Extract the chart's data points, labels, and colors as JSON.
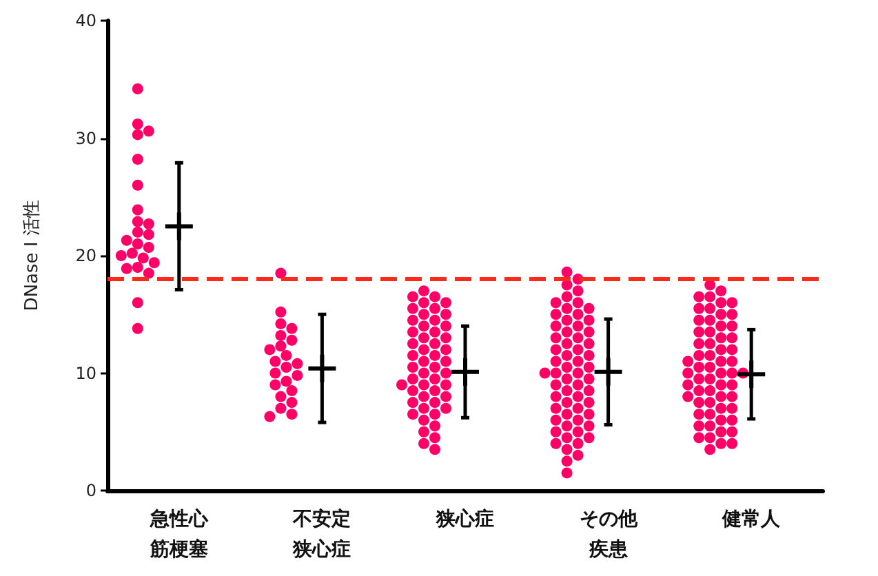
{
  "chart_data": {
    "type": "scatter",
    "ylabel": "DNase I 活性",
    "categories": [
      "急性心筋梗塞",
      "不安定狭心症",
      "狭心症",
      "その他疾患",
      "健常人"
    ],
    "ylim": [
      0,
      40
    ],
    "yticks": [
      0,
      10,
      20,
      30,
      40
    ],
    "grid": false,
    "marker": "circle",
    "ref_lines": [
      {
        "axis": "y",
        "value": 18,
        "color": "#ff2a1a",
        "line_style": "dashed"
      }
    ],
    "series": [
      {
        "color": "#ff0066",
        "x": [
          "急性心筋梗塞",
          "急性心筋梗塞",
          "急性心筋梗塞",
          "急性心筋梗塞",
          "急性心筋梗塞",
          "急性心筋梗塞",
          "急性心筋梗塞",
          "急性心筋梗塞",
          "急性心筋梗塞",
          "急性心筋梗塞",
          "急性心筋梗塞",
          "急性心筋梗塞",
          "急性心筋梗塞",
          "急性心筋梗塞",
          "急性心筋梗塞",
          "急性心筋梗塞",
          "急性心筋梗塞",
          "急性心筋梗塞",
          "急性心筋梗塞",
          "急性心筋梗塞",
          "急性心筋梗塞",
          "急性心筋梗塞",
          "急性心筋梗塞"
        ],
        "values": [
          34.2,
          31.2,
          30.6,
          30.3,
          28.2,
          26,
          23.9,
          22.9,
          22.7,
          22,
          21.8,
          21.3,
          21,
          20.7,
          20.2,
          20,
          19.8,
          19.4,
          19,
          18.9,
          18.5,
          16,
          13.8
        ]
      },
      {
        "color": "#ff0066",
        "x": [
          "不安定狭心症",
          "不安定狭心症",
          "不安定狭心症",
          "不安定狭心症",
          "不安定狭心症",
          "不安定狭心症",
          "不安定狭心症",
          "不安定狭心症",
          "不安定狭心症",
          "不安定狭心症",
          "不安定狭心症",
          "不安定狭心症",
          "不安定狭心症",
          "不安定狭心症",
          "不安定狭心症",
          "不安定狭心症",
          "不安定狭心症",
          "不安定狭心症",
          "不安定狭心症",
          "不安定狭心症",
          "不安定狭心症",
          "不安定狭心症"
        ],
        "values": [
          18.5,
          15.2,
          14.2,
          13.8,
          13.2,
          12.8,
          12.3,
          12,
          11.5,
          11,
          10.8,
          10.5,
          10,
          9.8,
          9.3,
          9,
          8.5,
          8,
          7.5,
          7,
          6.5,
          6.3
        ]
      },
      {
        "color": "#ff0066",
        "x": [
          "狭心症",
          "狭心症",
          "狭心症",
          "狭心症",
          "狭心症",
          "狭心症",
          "狭心症",
          "狭心症",
          "狭心症",
          "狭心症",
          "狭心症",
          "狭心症",
          "狭心症",
          "狭心症",
          "狭心症",
          "狭心症",
          "狭心症",
          "狭心症",
          "狭心症",
          "狭心症",
          "狭心症",
          "狭心症",
          "狭心症",
          "狭心症",
          "狭心症",
          "狭心症",
          "狭心症",
          "狭心症",
          "狭心症",
          "狭心症",
          "狭心症",
          "狭心症",
          "狭心症",
          "狭心症",
          "狭心症",
          "狭心症",
          "狭心症",
          "狭心症",
          "狭心症",
          "狭心症",
          "狭心症",
          "狭心症",
          "狭心症",
          "狭心症",
          "狭心症",
          "狭心症",
          "狭心症",
          "狭心症",
          "狭心症",
          "狭心症"
        ],
        "values": [
          17,
          16.5,
          16.5,
          16,
          16,
          15.5,
          15.5,
          15,
          15,
          14.5,
          14.5,
          14,
          14,
          13.5,
          13.5,
          13,
          13,
          12.5,
          12.5,
          12,
          12,
          11.5,
          11.5,
          11,
          11,
          10.5,
          10.5,
          10,
          10,
          9.5,
          9.5,
          9,
          9,
          9,
          8.5,
          8.5,
          8,
          8,
          7.5,
          7.5,
          7,
          7,
          6.5,
          6.5,
          6,
          5.5,
          5,
          4.5,
          4,
          3.5
        ]
      },
      {
        "color": "#ff0066",
        "x": [
          "その他疾患",
          "その他疾患",
          "その他疾患",
          "その他疾患",
          "その他疾患",
          "その他疾患",
          "その他疾患",
          "その他疾患",
          "その他疾患",
          "その他疾患",
          "その他疾患",
          "その他疾患",
          "その他疾患",
          "その他疾患",
          "その他疾患",
          "その他疾患",
          "その他疾患",
          "その他疾患",
          "その他疾患",
          "その他疾患",
          "その他疾患",
          "その他疾患",
          "その他疾患",
          "その他疾患",
          "その他疾患",
          "その他疾患",
          "その他疾患",
          "その他疾患",
          "その他疾患",
          "その他疾患",
          "その他疾患",
          "その他疾患",
          "その他疾患",
          "その他疾患",
          "その他疾患",
          "その他疾患",
          "その他疾患",
          "その他疾患",
          "その他疾患",
          "その他疾患",
          "その他疾患",
          "その他疾患",
          "その他疾患",
          "その他疾患",
          "その他疾患",
          "その他疾患",
          "その他疾患",
          "その他疾患",
          "その他疾患",
          "その他疾患",
          "その他疾患",
          "その他疾患",
          "その他疾患",
          "その他疾患",
          "その他疾患",
          "その他疾患",
          "その他疾患",
          "その他疾患",
          "その他疾患",
          "その他疾患"
        ],
        "values": [
          18.6,
          18,
          17.5,
          17,
          16.5,
          16,
          16,
          15.5,
          15.5,
          15,
          15,
          14.5,
          14.5,
          14,
          14,
          13.5,
          13.5,
          13,
          13,
          12.5,
          12.5,
          12,
          12,
          11.5,
          11.5,
          11,
          11,
          10.5,
          10.5,
          10,
          10,
          10,
          9.5,
          9.5,
          9,
          9,
          8.5,
          8.5,
          8,
          8,
          7.5,
          7.5,
          7,
          7,
          6.5,
          6.5,
          6,
          6,
          5.5,
          5.5,
          5,
          5,
          4.5,
          4.5,
          4,
          4,
          3.5,
          3,
          2.5,
          1.5
        ]
      },
      {
        "color": "#ff0066",
        "x": [
          "健常人",
          "健常人",
          "健常人",
          "健常人",
          "健常人",
          "健常人",
          "健常人",
          "健常人",
          "健常人",
          "健常人",
          "健常人",
          "健常人",
          "健常人",
          "健常人",
          "健常人",
          "健常人",
          "健常人",
          "健常人",
          "健常人",
          "健常人",
          "健常人",
          "健常人",
          "健常人",
          "健常人",
          "健常人",
          "健常人",
          "健常人",
          "健常人",
          "健常人",
          "健常人",
          "健常人",
          "健常人",
          "健常人",
          "健常人",
          "健常人",
          "健常人",
          "健常人",
          "健常人",
          "健常人",
          "健常人",
          "健常人",
          "健常人",
          "健常人",
          "健常人",
          "健常人",
          "健常人",
          "健常人",
          "健常人",
          "健常人",
          "健常人",
          "健常人",
          "健常人",
          "健常人",
          "健常人",
          "健常人",
          "健常人",
          "健常人",
          "健常人",
          "健常人",
          "健常人"
        ],
        "values": [
          17.5,
          17,
          16.5,
          16.5,
          16,
          16,
          15.5,
          15.5,
          15,
          15,
          14.5,
          14.5,
          14,
          14,
          13.5,
          13.5,
          13,
          13,
          12.5,
          12.5,
          12,
          12,
          11.5,
          11.5,
          11,
          11,
          10.5,
          10.5,
          10,
          10,
          10,
          9.5,
          9.5,
          9,
          9,
          8.5,
          8.5,
          8,
          8,
          7.5,
          7.5,
          7,
          7,
          6.5,
          6.5,
          6,
          6,
          5.5,
          5.5,
          5,
          5,
          4.5,
          4.5,
          4,
          4,
          3.5,
          9,
          10,
          11,
          8
        ]
      },
      {
        "color": "#000000",
        "marker": "cross",
        "values": [
          22.5,
          10.4,
          10.1,
          10.1,
          9.9
        ],
        "errors": [
          5.4,
          4.6,
          3.9,
          4.5,
          3.8
        ]
      }
    ]
  }
}
